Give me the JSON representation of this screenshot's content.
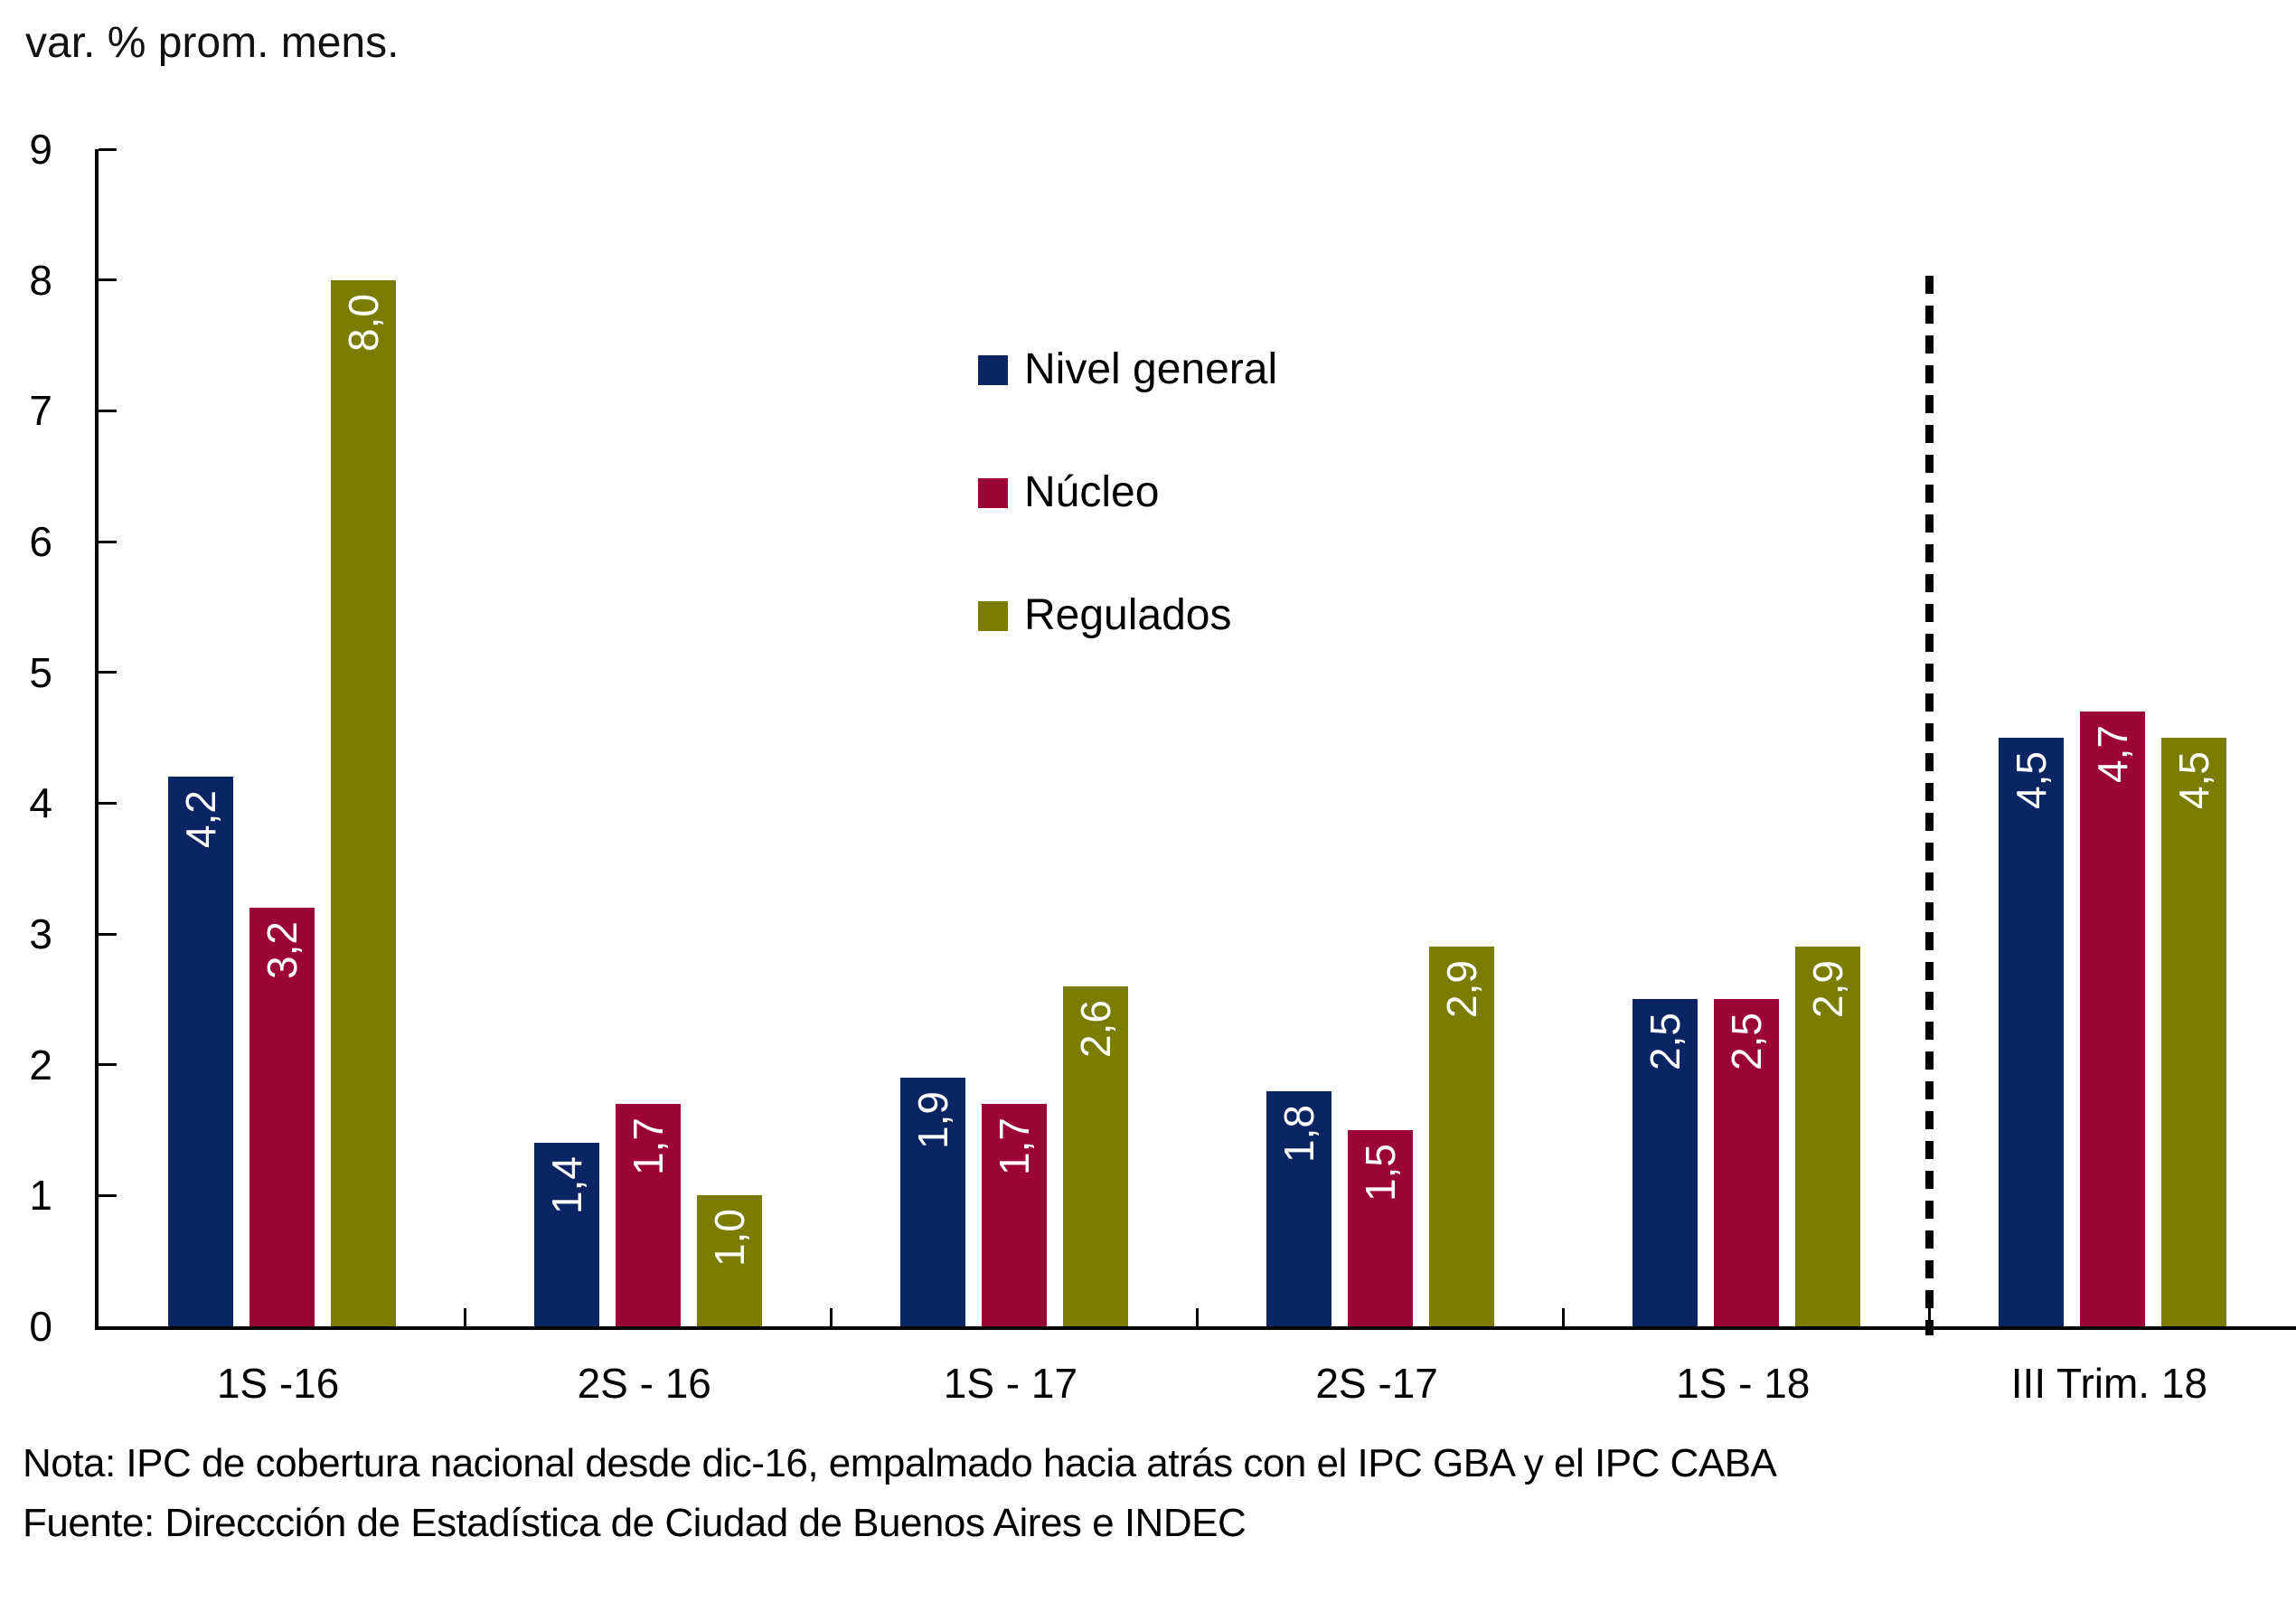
{
  "title": "var. % prom. mens.",
  "notes": {
    "line1": "Nota: IPC de cobertura nacional desde dic-16, empalmado hacia atrás con el IPC GBA y el IPC CABA",
    "line2": "Fuente: Direccción de Estadística de Ciudad de Buenos Aires e INDEC"
  },
  "colors": {
    "background": "#ffffff",
    "axis": "#000000",
    "text": "#000000",
    "data_label": "#ffffff",
    "separator": "#000000"
  },
  "chart_data": {
    "type": "bar",
    "title": "var. % prom. mens.",
    "xlabel": "",
    "ylabel": "var. % prom. mens.",
    "ylim": [
      0,
      9
    ],
    "yticks": [
      0,
      1,
      2,
      3,
      4,
      5,
      6,
      7,
      8,
      9
    ],
    "grid": false,
    "categories": [
      "1S -16",
      "2S - 16",
      "1S - 17",
      "2S -17",
      "1S - 18",
      "III Trim. 18"
    ],
    "series": [
      {
        "name": "Nivel general",
        "color": "#0B2463",
        "values": [
          4.2,
          1.4,
          1.9,
          1.8,
          2.5,
          4.5
        ],
        "labels": [
          "4,2",
          "1,4",
          "1,9",
          "1,8",
          "2,5",
          "4,5"
        ]
      },
      {
        "name": "Núcleo",
        "color": "#9C0435",
        "values": [
          3.2,
          1.7,
          1.7,
          1.5,
          2.5,
          4.7
        ],
        "labels": [
          "3,2",
          "1,7",
          "1,7",
          "1,5",
          "2,5",
          "4,7"
        ]
      },
      {
        "name": "Regulados",
        "color": "#7B7C02",
        "values": [
          8.0,
          1.0,
          2.6,
          2.9,
          2.9,
          4.5
        ],
        "labels": [
          "8,0",
          "1,0",
          "2,6",
          "2,9",
          "2,9",
          "4,5"
        ]
      }
    ],
    "legend": {
      "position": "upper-middle-left-inside-plot",
      "entries": [
        "Nivel general",
        "Núcleo",
        "Regulados"
      ]
    },
    "data_labels": {
      "position": "inside-end",
      "rotation_deg": -90,
      "color": "#ffffff"
    },
    "separator": {
      "style": "dashed-vertical-line",
      "before_category": "III Trim. 18",
      "after_category_index": 4
    }
  }
}
